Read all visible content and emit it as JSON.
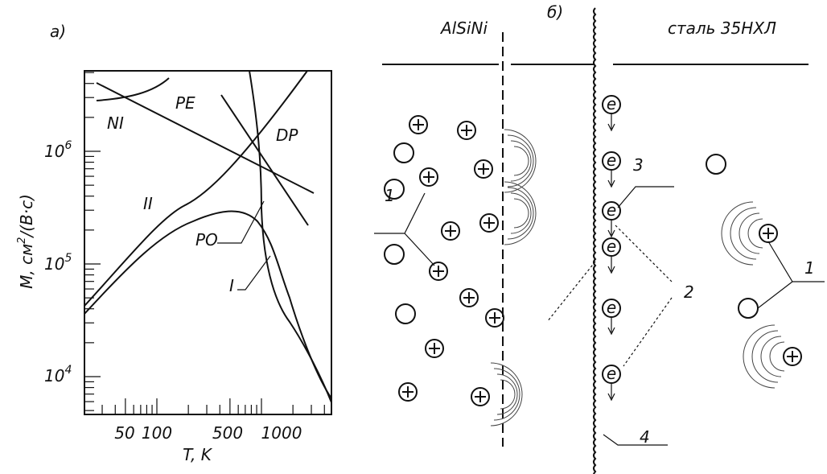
{
  "panel_a": {
    "label": "а)",
    "y_axis_label": {
      "text": "M, см",
      "exponent": "2",
      "suffix": "/(В·с)"
    },
    "x_axis_label": "T, K",
    "y_ticks": [
      {
        "base": "10",
        "exponent": "6"
      },
      {
        "base": "10",
        "exponent": "5"
      },
      {
        "base": "10",
        "exponent": "4"
      }
    ],
    "x_ticks": [
      "50",
      "100",
      "500",
      "1000"
    ],
    "curve_labels": [
      "NI",
      "PE",
      "DP",
      "II",
      "PO",
      "I"
    ]
  },
  "panel_b": {
    "label": "б)",
    "left_material": "AlSiNi",
    "right_material": "сталь 35НХЛ",
    "electron": "e",
    "callouts": [
      "1",
      "3",
      "2",
      "4",
      "1"
    ]
  }
}
